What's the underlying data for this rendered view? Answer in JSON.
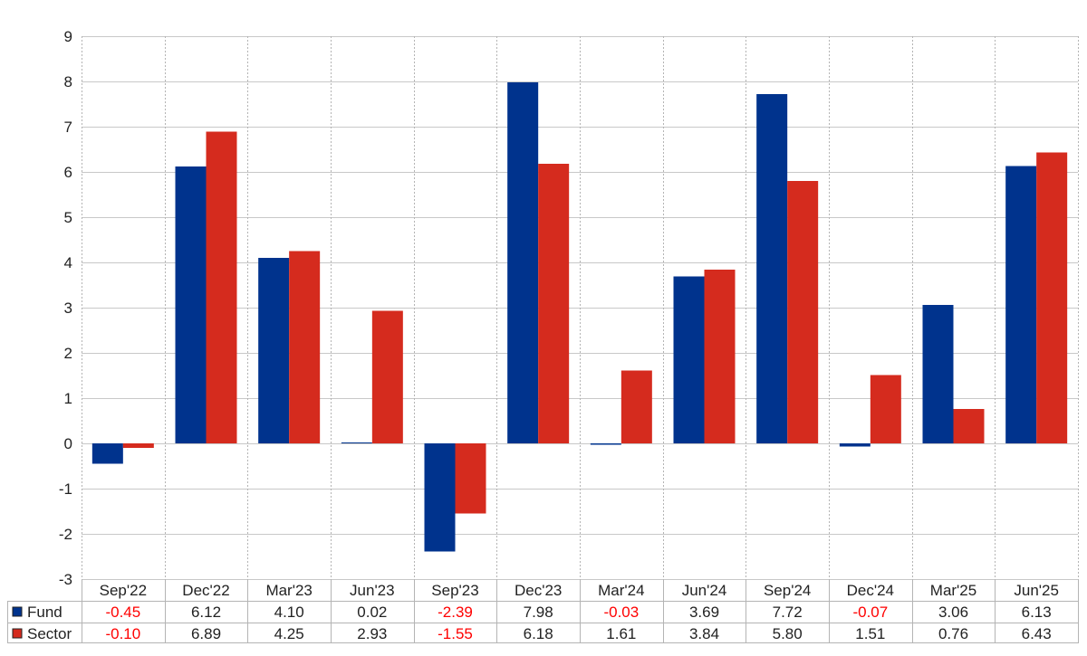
{
  "chart_data": {
    "type": "bar",
    "title": "",
    "xlabel": "",
    "ylabel": "",
    "ylim": [
      -3,
      9
    ],
    "yticks": [
      -3,
      -2,
      -1,
      0,
      1,
      2,
      3,
      4,
      5,
      6,
      7,
      8,
      9
    ],
    "grid": true,
    "categories": [
      "Sep'22",
      "Dec'22",
      "Mar'23",
      "Jun'23",
      "Sep'23",
      "Dec'23",
      "Mar'24",
      "Jun'24",
      "Sep'24",
      "Dec'24",
      "Mar'25",
      "Jun'25"
    ],
    "series": [
      {
        "name": "Fund",
        "color": "#00338d",
        "values": [
          -0.45,
          6.12,
          4.1,
          0.02,
          -2.39,
          7.98,
          -0.03,
          3.69,
          7.72,
          -0.07,
          3.06,
          6.13
        ]
      },
      {
        "name": "Sector",
        "color": "#d52b1e",
        "values": [
          -0.1,
          6.89,
          4.25,
          2.93,
          -1.55,
          6.18,
          1.61,
          3.84,
          5.8,
          1.51,
          0.76,
          6.43
        ]
      }
    ],
    "table": {
      "rows": [
        {
          "label": "Fund",
          "values": [
            "-0.45",
            "6.12",
            "4.10",
            "0.02",
            "-2.39",
            "7.98",
            "-0.03",
            "3.69",
            "7.72",
            "-0.07",
            "3.06",
            "6.13"
          ]
        },
        {
          "label": "Sector",
          "values": [
            "-0.10",
            "6.89",
            "4.25",
            "2.93",
            "-1.55",
            "6.18",
            "1.61",
            "3.84",
            "5.80",
            "1.51",
            "0.76",
            "6.43"
          ]
        }
      ],
      "negative_color": "#ff0000"
    }
  }
}
